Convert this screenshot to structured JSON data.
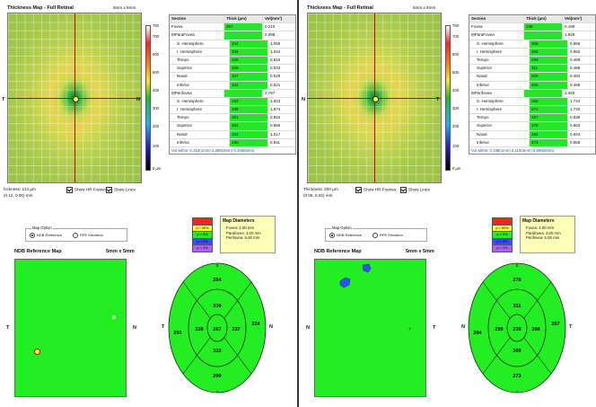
{
  "panels": [
    {
      "id": "left",
      "map_title": "Thickness Map - Full Retinal",
      "map_size": "5mm x 5mm",
      "axis_left": "T",
      "axis_right": "N",
      "colorbar_ticks": [
        "750",
        "700",
        "600",
        "500",
        "400",
        "300",
        "200",
        "100",
        "0 µm"
      ],
      "table": {
        "headers": [
          "Section",
          "Thick (µm)",
          "Vol(mm³)"
        ],
        "rows": [
          {
            "section": "Fovea",
            "thick": "267",
            "vol": "0.210"
          },
          {
            "section": "ParaFovea",
            "thick": "",
            "vol": "2.098"
          },
          {
            "section": "S. Hemisphere",
            "thick": "334",
            "vol": "1.055"
          },
          {
            "section": "I. Hemisphere",
            "thick": "332",
            "vol": "1.044"
          },
          {
            "section": "Tempo",
            "thick": "328",
            "vol": "0.515"
          },
          {
            "section": "Superior",
            "thick": "339",
            "vol": "0.533"
          },
          {
            "section": "Nasal",
            "thick": "337",
            "vol": "0.529"
          },
          {
            "section": "Inferior",
            "thick": "332",
            "vol": "0.521"
          },
          {
            "section": "Perifovea",
            "thick": "",
            "vol": "3.797"
          },
          {
            "section": "S. Hemisphere",
            "thick": "293",
            "vol": "1.923"
          },
          {
            "section": "I. Hemisphere",
            "thick": "289",
            "vol": "1.874"
          },
          {
            "section": "Tempo",
            "thick": "291",
            "vol": "0.915"
          },
          {
            "section": "Superior",
            "thick": "284",
            "vol": "0.955"
          },
          {
            "section": "Nasal",
            "thick": "324",
            "vol": "1.017"
          },
          {
            "section": "Inferior",
            "thick": "290",
            "vol": "0.911"
          }
        ],
        "footer": "Vol within: 0.210(1mm) 2.308(3mm) 6.106(5mm)"
      },
      "thickness_readout": "hickness: 214 µm",
      "coord_readout": "(0.12, 0.00) mm",
      "show_hr_frames": "Show HR Frames",
      "show_lines": "Show Lines",
      "map_option_label": "Map Option",
      "ndb_option": "NDB Reference",
      "rpe_option": "RPE Elevation",
      "ndb_title": "NDB Reference Map",
      "ndb_size": "5mm x 5mm",
      "ndb_left": "T",
      "ndb_right": "N",
      "legend_pct": [
        "",
        "p > 95%",
        "p > 5%",
        "p < 5%",
        "p < 1%"
      ],
      "map_diameters": {
        "title": "Map Diameters",
        "fovea": "Fovea:      1.00 mm",
        "parafovea": "Parafovea: 3.00 mm",
        "perifovea": "Perifovea:  5.00 mm"
      },
      "etdrs": {
        "center": "267",
        "inner_sup": "339",
        "inner_temp": "328",
        "inner_nasal": "337",
        "inner_inf": "332",
        "outer_sup": "284",
        "outer_temp": "291",
        "outer_nasal": "324",
        "outer_inf": "290",
        "top_label": "S",
        "bottom_label": "I",
        "left_label": "T",
        "right_label": "N"
      }
    },
    {
      "id": "right",
      "map_title": "Thickness Map - Full Retinal",
      "map_size": "5mm x 5mm",
      "axis_left": "N",
      "axis_right": "T",
      "colorbar_ticks": [
        "750",
        "700",
        "600",
        "500",
        "400",
        "300",
        "200",
        "100",
        "0 µm"
      ],
      "table": {
        "headers": [
          "Section",
          "Thick (µm)",
          "Vol(mm³)"
        ],
        "rows": [
          {
            "section": "Fovea",
            "thick": "239",
            "vol": "0.188"
          },
          {
            "section": "ParaFovea",
            "thick": "",
            "vol": "1.928"
          },
          {
            "section": "S. Hemisphere",
            "thick": "308",
            "vol": "0.966"
          },
          {
            "section": "I. Hemisphere",
            "thick": "306",
            "vol": "0.962"
          },
          {
            "section": "Tempo",
            "thick": "299",
            "vol": "0.469"
          },
          {
            "section": "Superior",
            "thick": "311",
            "vol": "0.489"
          },
          {
            "section": "Nasal",
            "thick": "308",
            "vol": "0.484"
          },
          {
            "section": "Inferior",
            "thick": "309",
            "vol": "0.485"
          },
          {
            "section": "Perifovea",
            "thick": "",
            "vol": "3.483"
          },
          {
            "section": "S. Hemisphere",
            "thick": "268",
            "vol": "1.744"
          },
          {
            "section": "I. Hemisphere",
            "thick": "271",
            "vol": "1.740"
          },
          {
            "section": "Tempo",
            "thick": "267",
            "vol": "0.838"
          },
          {
            "section": "Superior",
            "thick": "278",
            "vol": "0.863"
          },
          {
            "section": "Nasal",
            "thick": "284",
            "vol": "0.924"
          },
          {
            "section": "Inferior",
            "thick": "273",
            "vol": "0.858"
          }
        ],
        "footer": "Vol within: 0.188(1mm) 2.115(3mm) 5.598(5mm)"
      },
      "thickness_readout": "Thickness: 200 µm",
      "coord_readout": "(0.06, 0.02) mm",
      "show_hr_frames": "Show HR Frames",
      "show_lines": "Show Lines",
      "map_option_label": "Map Option",
      "ndb_option": "NDB Reference",
      "rpe_option": "RPE Elevation",
      "ndb_title": "NDB Reference Map",
      "ndb_size": "5mm x 5mm",
      "ndb_left": "N",
      "ndb_right": "T",
      "legend_pct": [
        "",
        "p > 95%",
        "p > 5%",
        "p < 5%",
        "p < 1%"
      ],
      "map_diameters": {
        "title": "Map Diameters",
        "fovea": "Fovea:      1.00 mm",
        "parafovea": "Parafovea: 3.00 mm",
        "perifovea": "Perifovea:  5.00 mm"
      },
      "etdrs": {
        "center": "239",
        "inner_sup": "311",
        "inner_temp": "299",
        "inner_nasal": "308",
        "inner_inf": "309",
        "outer_sup": "278",
        "outer_temp": "267",
        "outer_nasal": "284",
        "outer_inf": "273",
        "top_label": "S",
        "bottom_label": "I",
        "left_label": "N",
        "right_label": "T"
      }
    }
  ],
  "colors": {
    "normal_green": "#22ee22",
    "axis_red": "#cc0000",
    "legend": [
      "#ff2020",
      "#ffff30",
      "#22ee22",
      "#3050ff",
      "#b060ff"
    ]
  }
}
